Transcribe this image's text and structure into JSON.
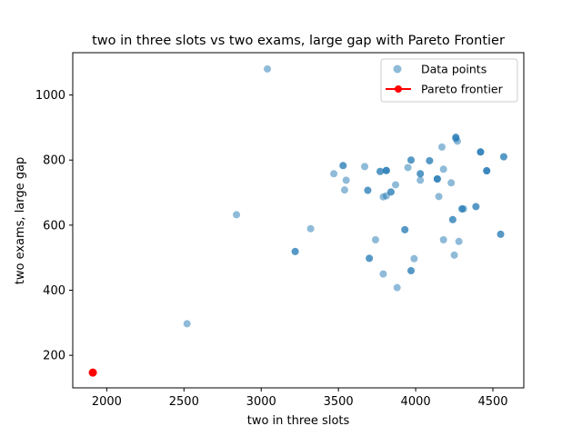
{
  "chart_data": {
    "type": "scatter",
    "title": "two in three slots vs two exams, large gap with Pareto Frontier",
    "xlabel": "two in three slots",
    "ylabel": "two exams, large gap",
    "xlim": [
      1780,
      4700
    ],
    "ylim": [
      100,
      1130
    ],
    "xticks": [
      2000,
      2500,
      3000,
      3500,
      4000,
      4500
    ],
    "yticks": [
      200,
      400,
      600,
      800,
      1000
    ],
    "grid": false,
    "legend_position": "top-right",
    "series": [
      {
        "name": "Data points",
        "kind": "scatter",
        "color": "#1f77b4",
        "alpha": 0.5,
        "points": [
          [
            3040,
            1080
          ],
          [
            2520,
            297
          ],
          [
            2840,
            632
          ],
          [
            3320,
            589
          ],
          [
            3220,
            519
          ],
          [
            3220,
            519
          ],
          [
            3470,
            758
          ],
          [
            3540,
            708
          ],
          [
            3550,
            738
          ],
          [
            3530,
            783
          ],
          [
            3530,
            783
          ],
          [
            3670,
            780
          ],
          [
            3690,
            707
          ],
          [
            3690,
            707
          ],
          [
            3700,
            498
          ],
          [
            3700,
            498
          ],
          [
            3740,
            555
          ],
          [
            3770,
            765
          ],
          [
            3770,
            765
          ],
          [
            3790,
            687
          ],
          [
            3790,
            450
          ],
          [
            3810,
            768
          ],
          [
            3810,
            768
          ],
          [
            3810,
            768
          ],
          [
            3810,
            690
          ],
          [
            3840,
            702
          ],
          [
            3840,
            702
          ],
          [
            3870,
            724
          ],
          [
            3880,
            408
          ],
          [
            3930,
            586
          ],
          [
            3930,
            586
          ],
          [
            3950,
            777
          ],
          [
            3970,
            800
          ],
          [
            3970,
            800
          ],
          [
            3970,
            460
          ],
          [
            3970,
            460
          ],
          [
            3990,
            497
          ],
          [
            4030,
            758
          ],
          [
            4030,
            758
          ],
          [
            4030,
            738
          ],
          [
            4090,
            798
          ],
          [
            4090,
            798
          ],
          [
            4140,
            742
          ],
          [
            4140,
            742
          ],
          [
            4140,
            742
          ],
          [
            4150,
            688
          ],
          [
            4170,
            840
          ],
          [
            4180,
            772
          ],
          [
            4180,
            555
          ],
          [
            4230,
            730
          ],
          [
            4240,
            617
          ],
          [
            4240,
            617
          ],
          [
            4250,
            508
          ],
          [
            4260,
            870
          ],
          [
            4260,
            870
          ],
          [
            4260,
            866
          ],
          [
            4270,
            858
          ],
          [
            4280,
            550
          ],
          [
            4300,
            650
          ],
          [
            4300,
            650
          ],
          [
            4310,
            650
          ],
          [
            4390,
            657
          ],
          [
            4390,
            657
          ],
          [
            4420,
            825
          ],
          [
            4420,
            825
          ],
          [
            4420,
            825
          ],
          [
            4460,
            767
          ],
          [
            4460,
            767
          ],
          [
            4460,
            767
          ],
          [
            4550,
            572
          ],
          [
            4550,
            572
          ],
          [
            4570,
            810
          ],
          [
            4570,
            810
          ]
        ]
      },
      {
        "name": "Pareto frontier",
        "kind": "line",
        "color": "#ff0000",
        "points": [
          [
            1910,
            147
          ]
        ]
      }
    ]
  }
}
